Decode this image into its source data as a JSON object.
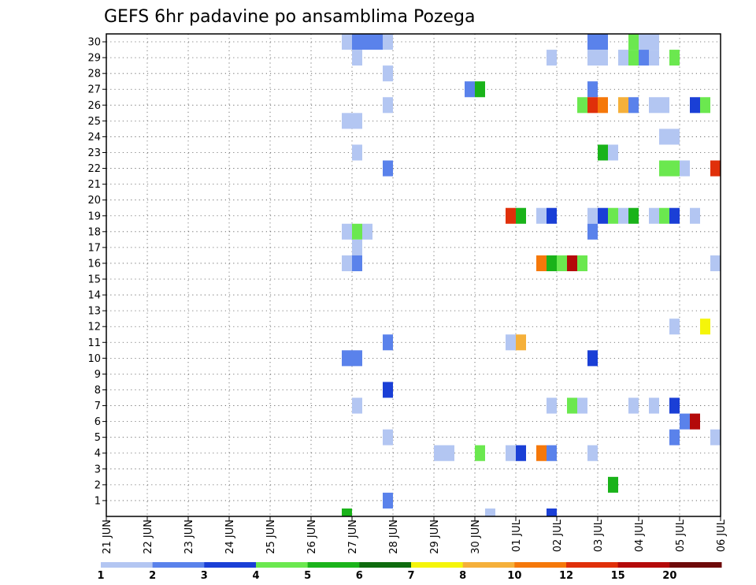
{
  "chart_data": {
    "type": "heatmap",
    "title": "GEFS 6hr padavine po ansamblima Pozega",
    "ylabel": "",
    "xlabel": "",
    "y_ticks": [
      "1",
      "2",
      "3",
      "4",
      "5",
      "6",
      "7",
      "8",
      "9",
      "10",
      "11",
      "12",
      "13",
      "14",
      "15",
      "16",
      "17",
      "18",
      "19",
      "20",
      "21",
      "22",
      "23",
      "24",
      "25",
      "26",
      "27",
      "28",
      "29",
      "30"
    ],
    "x_ticks": [
      "21 JUN",
      "22 JUN",
      "23 JUN",
      "24 JUN",
      "25 JUN",
      "26 JUN",
      "27 JUN",
      "28 JUN",
      "29 JUN",
      "30 JUN",
      "01 JUL",
      "02 JUL",
      "03 JUL",
      "04 JUL",
      "05 JUL",
      "06 JUL"
    ],
    "x_range": [
      "21 JUN 00Z",
      "06 JUL 00Z"
    ],
    "time_step_hours": 6,
    "ylim": [
      0,
      30
    ],
    "grid": true,
    "colorbar": {
      "labels": [
        "1",
        "2",
        "3",
        "4",
        "5",
        "6",
        "7",
        "8",
        "10",
        "12",
        "15",
        "20"
      ],
      "colors": [
        "#b3c6f2",
        "#5a82eb",
        "#1a3fd6",
        "#6be84f",
        "#1ab31a",
        "#0e6b0e",
        "#f5f50a",
        "#f5b03a",
        "#f5780a",
        "#e0300a",
        "#b40a0a",
        "#6e0a0a"
      ]
    },
    "cells": [
      {
        "member": 30,
        "time": "27 JUN 00Z",
        "bin": 1
      },
      {
        "member": 30,
        "time": "27 JUN 06Z",
        "bin": 2
      },
      {
        "member": 30,
        "time": "27 JUN 12Z",
        "bin": 2
      },
      {
        "member": 30,
        "time": "27 JUN 18Z",
        "bin": 2
      },
      {
        "member": 30,
        "time": "28 JUN 00Z",
        "bin": 1
      },
      {
        "member": 30,
        "time": "03 JUL 00Z",
        "bin": 2
      },
      {
        "member": 30,
        "time": "03 JUL 06Z",
        "bin": 2
      },
      {
        "member": 30,
        "time": "04 JUL 00Z",
        "bin": 4
      },
      {
        "member": 30,
        "time": "04 JUL 06Z",
        "bin": 1
      },
      {
        "member": 30,
        "time": "04 JUL 12Z",
        "bin": 1
      },
      {
        "member": 29,
        "time": "27 JUN 06Z",
        "bin": 1
      },
      {
        "member": 29,
        "time": "02 JUL 00Z",
        "bin": 1
      },
      {
        "member": 29,
        "time": "03 JUL 00Z",
        "bin": 1
      },
      {
        "member": 29,
        "time": "03 JUL 06Z",
        "bin": 1
      },
      {
        "member": 29,
        "time": "03 JUL 18Z",
        "bin": 1
      },
      {
        "member": 29,
        "time": "04 JUL 00Z",
        "bin": 4
      },
      {
        "member": 29,
        "time": "04 JUL 06Z",
        "bin": 2
      },
      {
        "member": 29,
        "time": "04 JUL 12Z",
        "bin": 1
      },
      {
        "member": 29,
        "time": "05 JUL 00Z",
        "bin": 4
      },
      {
        "member": 28,
        "time": "28 JUN 00Z",
        "bin": 1
      },
      {
        "member": 27,
        "time": "30 JUN 00Z",
        "bin": 2
      },
      {
        "member": 27,
        "time": "30 JUN 06Z",
        "bin": 5
      },
      {
        "member": 27,
        "time": "03 JUL 00Z",
        "bin": 2
      },
      {
        "member": 26,
        "time": "28 JUN 00Z",
        "bin": 1
      },
      {
        "member": 26,
        "time": "02 JUL 18Z",
        "bin": 4
      },
      {
        "member": 26,
        "time": "03 JUL 00Z",
        "bin": 10
      },
      {
        "member": 26,
        "time": "03 JUL 06Z",
        "bin": 9
      },
      {
        "member": 26,
        "time": "03 JUL 18Z",
        "bin": 8
      },
      {
        "member": 26,
        "time": "04 JUL 00Z",
        "bin": 2
      },
      {
        "member": 26,
        "time": "04 JUL 12Z",
        "bin": 1
      },
      {
        "member": 26,
        "time": "04 JUL 18Z",
        "bin": 1
      },
      {
        "member": 26,
        "time": "05 JUL 12Z",
        "bin": 3
      },
      {
        "member": 26,
        "time": "05 JUL 18Z",
        "bin": 4
      },
      {
        "member": 25,
        "time": "27 JUN 00Z",
        "bin": 1
      },
      {
        "member": 25,
        "time": "27 JUN 06Z",
        "bin": 1
      },
      {
        "member": 24,
        "time": "04 JUL 18Z",
        "bin": 1
      },
      {
        "member": 24,
        "time": "05 JUL 00Z",
        "bin": 1
      },
      {
        "member": 23,
        "time": "27 JUN 06Z",
        "bin": 1
      },
      {
        "member": 23,
        "time": "03 JUL 06Z",
        "bin": 5
      },
      {
        "member": 23,
        "time": "03 JUL 12Z",
        "bin": 1
      },
      {
        "member": 22,
        "time": "28 JUN 00Z",
        "bin": 2
      },
      {
        "member": 22,
        "time": "04 JUL 18Z",
        "bin": 4
      },
      {
        "member": 22,
        "time": "05 JUL 00Z",
        "bin": 4
      },
      {
        "member": 22,
        "time": "05 JUL 06Z",
        "bin": 1
      },
      {
        "member": 22,
        "time": "06 JUL 00Z",
        "bin": 10
      },
      {
        "member": 19,
        "time": "01 JUL 00Z",
        "bin": 10
      },
      {
        "member": 19,
        "time": "01 JUL 06Z",
        "bin": 5
      },
      {
        "member": 19,
        "time": "01 JUL 18Z",
        "bin": 1
      },
      {
        "member": 19,
        "time": "02 JUL 00Z",
        "bin": 3
      },
      {
        "member": 19,
        "time": "03 JUL 00Z",
        "bin": 1
      },
      {
        "member": 19,
        "time": "03 JUL 06Z",
        "bin": 3
      },
      {
        "member": 19,
        "time": "03 JUL 12Z",
        "bin": 4
      },
      {
        "member": 19,
        "time": "03 JUL 18Z",
        "bin": 1
      },
      {
        "member": 19,
        "time": "04 JUL 00Z",
        "bin": 5
      },
      {
        "member": 19,
        "time": "04 JUL 12Z",
        "bin": 1
      },
      {
        "member": 19,
        "time": "04 JUL 18Z",
        "bin": 4
      },
      {
        "member": 19,
        "time": "05 JUL 00Z",
        "bin": 3
      },
      {
        "member": 19,
        "time": "05 JUL 12Z",
        "bin": 1
      },
      {
        "member": 18,
        "time": "27 JUN 00Z",
        "bin": 1
      },
      {
        "member": 18,
        "time": "27 JUN 06Z",
        "bin": 4
      },
      {
        "member": 18,
        "time": "27 JUN 12Z",
        "bin": 1
      },
      {
        "member": 18,
        "time": "03 JUL 00Z",
        "bin": 2
      },
      {
        "member": 17,
        "time": "27 JUN 06Z",
        "bin": 1
      },
      {
        "member": 16,
        "time": "27 JUN 00Z",
        "bin": 1
      },
      {
        "member": 16,
        "time": "27 JUN 06Z",
        "bin": 2
      },
      {
        "member": 16,
        "time": "01 JUL 18Z",
        "bin": 9
      },
      {
        "member": 16,
        "time": "02 JUL 00Z",
        "bin": 5
      },
      {
        "member": 16,
        "time": "02 JUL 06Z",
        "bin": 4
      },
      {
        "member": 16,
        "time": "02 JUL 12Z",
        "bin": 11
      },
      {
        "member": 16,
        "time": "02 JUL 18Z",
        "bin": 4
      },
      {
        "member": 16,
        "time": "06 JUL 00Z",
        "bin": 1
      },
      {
        "member": 12,
        "time": "05 JUL 00Z",
        "bin": 1
      },
      {
        "member": 12,
        "time": "05 JUL 18Z",
        "bin": 7
      },
      {
        "member": 11,
        "time": "28 JUN 00Z",
        "bin": 2
      },
      {
        "member": 11,
        "time": "01 JUL 00Z",
        "bin": 1
      },
      {
        "member": 11,
        "time": "01 JUL 06Z",
        "bin": 8
      },
      {
        "member": 10,
        "time": "27 JUN 00Z",
        "bin": 2
      },
      {
        "member": 10,
        "time": "27 JUN 06Z",
        "bin": 2
      },
      {
        "member": 10,
        "time": "03 JUL 00Z",
        "bin": 3
      },
      {
        "member": 8,
        "time": "28 JUN 00Z",
        "bin": 3
      },
      {
        "member": 7,
        "time": "27 JUN 06Z",
        "bin": 1
      },
      {
        "member": 7,
        "time": "02 JUL 00Z",
        "bin": 1
      },
      {
        "member": 7,
        "time": "02 JUL 12Z",
        "bin": 4
      },
      {
        "member": 7,
        "time": "02 JUL 18Z",
        "bin": 1
      },
      {
        "member": 7,
        "time": "04 JUL 00Z",
        "bin": 1
      },
      {
        "member": 7,
        "time": "04 JUL 12Z",
        "bin": 1
      },
      {
        "member": 7,
        "time": "05 JUL 00Z",
        "bin": 3
      },
      {
        "member": 6,
        "time": "05 JUL 06Z",
        "bin": 2
      },
      {
        "member": 6,
        "time": "05 JUL 12Z",
        "bin": 11
      },
      {
        "member": 5,
        "time": "28 JUN 00Z",
        "bin": 1
      },
      {
        "member": 5,
        "time": "05 JUL 00Z",
        "bin": 2
      },
      {
        "member": 5,
        "time": "06 JUL 00Z",
        "bin": 1
      },
      {
        "member": 4,
        "time": "29 JUN 06Z",
        "bin": 1
      },
      {
        "member": 4,
        "time": "29 JUN 12Z",
        "bin": 1
      },
      {
        "member": 4,
        "time": "30 JUN 06Z",
        "bin": 4
      },
      {
        "member": 4,
        "time": "01 JUL 00Z",
        "bin": 1
      },
      {
        "member": 4,
        "time": "01 JUL 06Z",
        "bin": 3
      },
      {
        "member": 4,
        "time": "01 JUL 18Z",
        "bin": 9
      },
      {
        "member": 4,
        "time": "02 JUL 00Z",
        "bin": 2
      },
      {
        "member": 4,
        "time": "03 JUL 00Z",
        "bin": 1
      },
      {
        "member": 2,
        "time": "03 JUL 12Z",
        "bin": 5
      },
      {
        "member": 1,
        "time": "28 JUN 00Z",
        "bin": 2
      },
      {
        "member": 0,
        "time": "27 JUN 00Z",
        "bin": 5
      },
      {
        "member": 0,
        "time": "30 JUN 12Z",
        "bin": 1
      },
      {
        "member": 0,
        "time": "02 JUL 00Z",
        "bin": 3
      }
    ]
  }
}
